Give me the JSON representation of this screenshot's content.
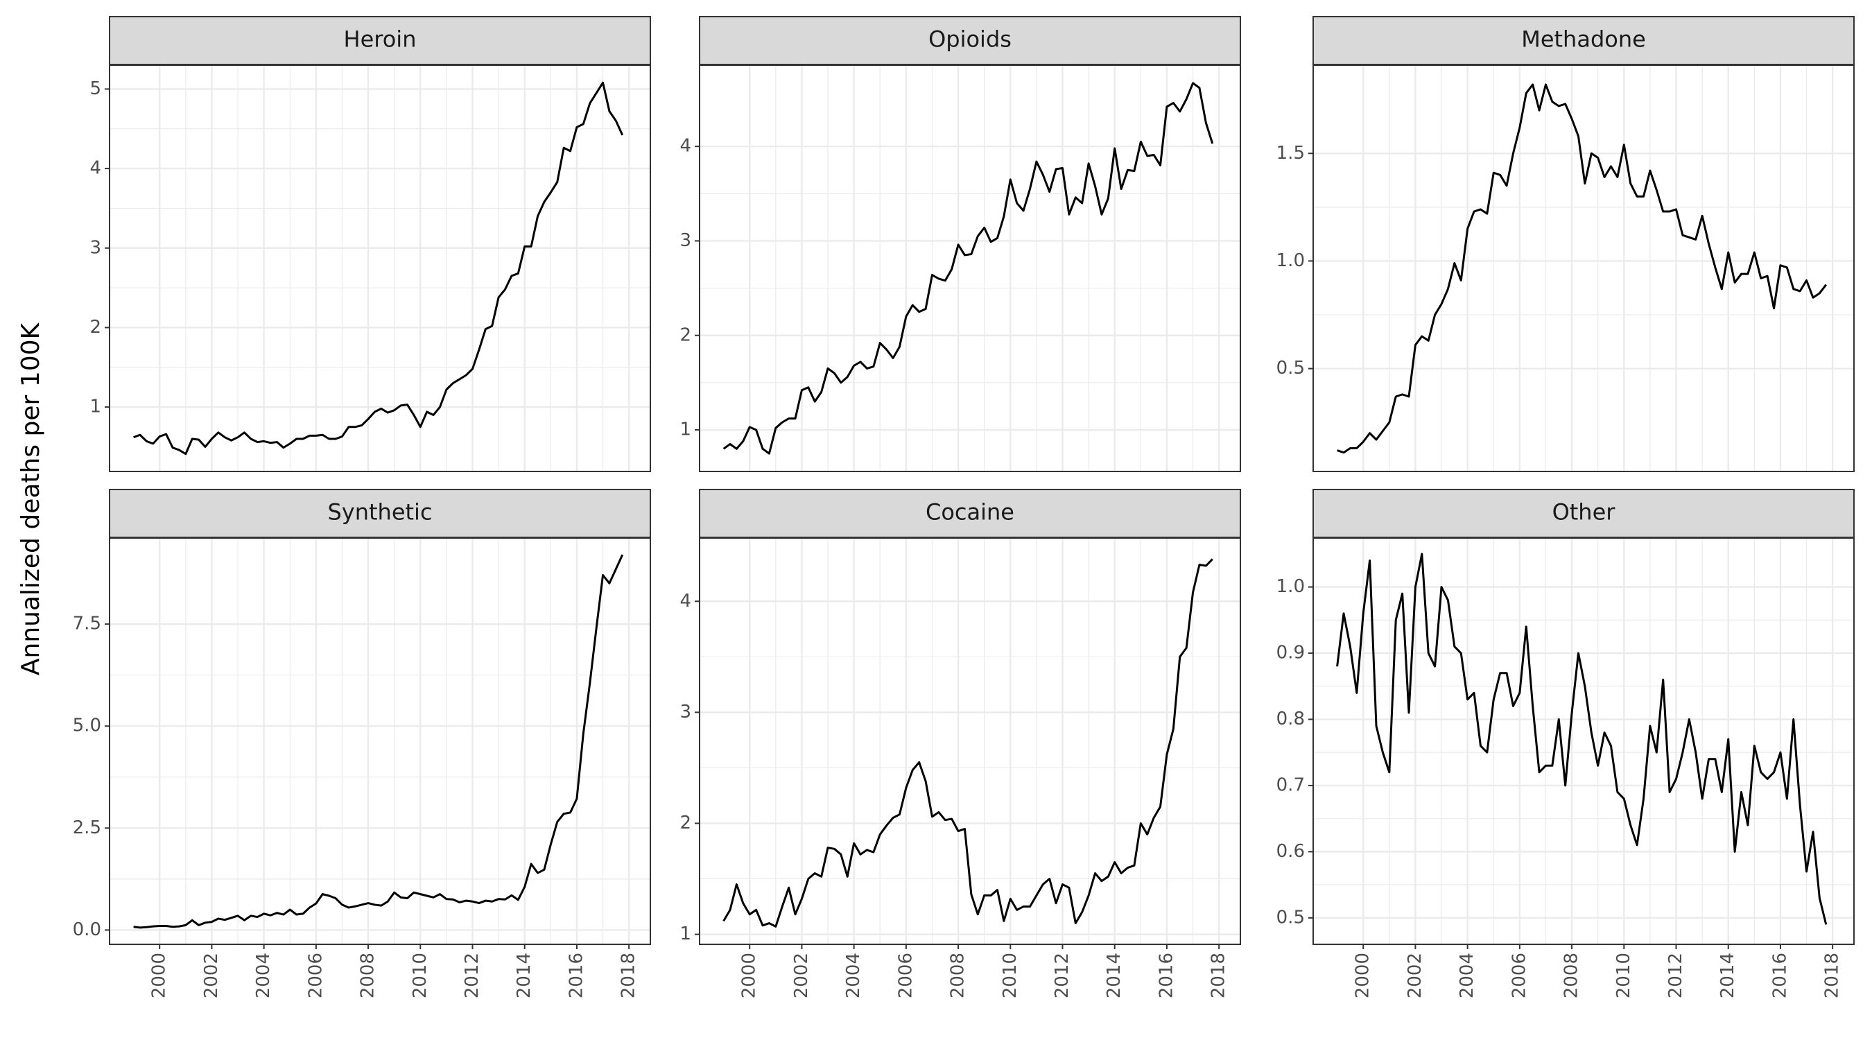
{
  "y_label": "Annualized deaths per 100K",
  "chart_data": [
    {
      "type": "line",
      "title": "Heroin",
      "x": [
        1999,
        1999.25,
        1999.5,
        1999.75,
        2000,
        2000.25,
        2000.5,
        2000.75,
        2001,
        2001.25,
        2001.5,
        2001.75,
        2002,
        2002.25,
        2002.5,
        2002.75,
        2003,
        2003.25,
        2003.5,
        2003.75,
        2004,
        2004.25,
        2004.5,
        2004.75,
        2005,
        2005.25,
        2005.5,
        2005.75,
        2006,
        2006.25,
        2006.5,
        2006.75,
        2007,
        2007.25,
        2007.5,
        2007.75,
        2008,
        2008.25,
        2008.5,
        2008.75,
        2009,
        2009.25,
        2009.5,
        2009.75,
        2010,
        2010.25,
        2010.5,
        2010.75,
        2011,
        2011.25,
        2011.5,
        2011.75,
        2012,
        2012.25,
        2012.5,
        2012.75,
        2013,
        2013.25,
        2013.5,
        2013.75,
        2014,
        2014.25,
        2014.5,
        2014.75,
        2015,
        2015.25,
        2015.5,
        2015.75,
        2016,
        2016.25,
        2016.5,
        2016.75,
        2017,
        2017.25,
        2017.5,
        2017.75
      ],
      "values": [
        0.62,
        0.65,
        0.57,
        0.54,
        0.63,
        0.66,
        0.49,
        0.46,
        0.41,
        0.6,
        0.59,
        0.5,
        0.6,
        0.68,
        0.62,
        0.58,
        0.62,
        0.68,
        0.6,
        0.56,
        0.57,
        0.55,
        0.56,
        0.49,
        0.54,
        0.6,
        0.6,
        0.64,
        0.64,
        0.65,
        0.6,
        0.6,
        0.63,
        0.75,
        0.75,
        0.77,
        0.85,
        0.94,
        0.98,
        0.93,
        0.96,
        1.02,
        1.03,
        0.9,
        0.75,
        0.94,
        0.9,
        1.0,
        1.22,
        1.3,
        1.35,
        1.4,
        1.48,
        1.72,
        1.98,
        2.02,
        2.38,
        2.48,
        2.65,
        2.68,
        3.02,
        3.02,
        3.4,
        3.58,
        3.7,
        3.83,
        4.26,
        4.22,
        4.52,
        4.56,
        4.82,
        4.95,
        5.08,
        4.72,
        4.6,
        4.42
      ],
      "color": "#000000",
      "xlim": [
        1998.08,
        2018.82
      ],
      "ylim": [
        0.19,
        5.3
      ],
      "xticks": [
        2000,
        2002,
        2004,
        2006,
        2008,
        2010,
        2012,
        2014,
        2016,
        2018
      ],
      "yticks": [
        1,
        2,
        3,
        4,
        5
      ],
      "grid": true
    },
    {
      "type": "line",
      "title": "Opioids",
      "x": [
        1999,
        1999.25,
        1999.5,
        1999.75,
        2000,
        2000.25,
        2000.5,
        2000.75,
        2001,
        2001.25,
        2001.5,
        2001.75,
        2002,
        2002.25,
        2002.5,
        2002.75,
        2003,
        2003.25,
        2003.5,
        2003.75,
        2004,
        2004.25,
        2004.5,
        2004.75,
        2005,
        2005.25,
        2005.5,
        2005.75,
        2006,
        2006.25,
        2006.5,
        2006.75,
        2007,
        2007.25,
        2007.5,
        2007.75,
        2008,
        2008.25,
        2008.5,
        2008.75,
        2009,
        2009.25,
        2009.5,
        2009.75,
        2010,
        2010.25,
        2010.5,
        2010.75,
        2011,
        2011.25,
        2011.5,
        2011.75,
        2012,
        2012.25,
        2012.5,
        2012.75,
        2013,
        2013.25,
        2013.5,
        2013.75,
        2014,
        2014.25,
        2014.5,
        2014.75,
        2015,
        2015.25,
        2015.5,
        2015.75,
        2016,
        2016.25,
        2016.5,
        2016.75,
        2017,
        2017.25,
        2017.5,
        2017.75
      ],
      "values": [
        0.8,
        0.85,
        0.8,
        0.88,
        1.03,
        1.0,
        0.8,
        0.75,
        1.02,
        1.08,
        1.12,
        1.12,
        1.42,
        1.45,
        1.3,
        1.4,
        1.65,
        1.6,
        1.5,
        1.56,
        1.68,
        1.72,
        1.65,
        1.67,
        1.92,
        1.85,
        1.76,
        1.88,
        2.2,
        2.32,
        2.25,
        2.28,
        2.64,
        2.6,
        2.58,
        2.7,
        2.96,
        2.85,
        2.86,
        3.05,
        3.14,
        2.99,
        3.03,
        3.26,
        3.65,
        3.4,
        3.32,
        3.55,
        3.84,
        3.7,
        3.52,
        3.76,
        3.77,
        3.28,
        3.46,
        3.4,
        3.82,
        3.58,
        3.28,
        3.45,
        3.98,
        3.55,
        3.75,
        3.74,
        4.05,
        3.9,
        3.91,
        3.8,
        4.42,
        4.46,
        4.37,
        4.5,
        4.67,
        4.62,
        4.25,
        4.03
      ],
      "color": "#000000",
      "xlim": [
        1998.08,
        2018.82
      ],
      "ylim": [
        0.56,
        4.86
      ],
      "xticks": [
        2000,
        2002,
        2004,
        2006,
        2008,
        2010,
        2012,
        2014,
        2016,
        2018
      ],
      "yticks": [
        1,
        2,
        3,
        4
      ],
      "grid": true
    },
    {
      "type": "line",
      "title": "Methadone",
      "x": [
        1999,
        1999.25,
        1999.5,
        1999.75,
        2000,
        2000.25,
        2000.5,
        2000.75,
        2001,
        2001.25,
        2001.5,
        2001.75,
        2002,
        2002.25,
        2002.5,
        2002.75,
        2003,
        2003.25,
        2003.5,
        2003.75,
        2004,
        2004.25,
        2004.5,
        2004.75,
        2005,
        2005.25,
        2005.5,
        2005.75,
        2006,
        2006.25,
        2006.5,
        2006.75,
        2007,
        2007.25,
        2007.5,
        2007.75,
        2008,
        2008.25,
        2008.5,
        2008.75,
        2009,
        2009.25,
        2009.5,
        2009.75,
        2010,
        2010.25,
        2010.5,
        2010.75,
        2011,
        2011.25,
        2011.5,
        2011.75,
        2012,
        2012.25,
        2012.5,
        2012.75,
        2013,
        2013.25,
        2013.5,
        2013.75,
        2014,
        2014.25,
        2014.5,
        2014.75,
        2015,
        2015.25,
        2015.5,
        2015.75,
        2016,
        2016.25,
        2016.5,
        2016.75,
        2017,
        2017.25,
        2017.5,
        2017.75
      ],
      "values": [
        0.12,
        0.11,
        0.13,
        0.13,
        0.16,
        0.2,
        0.17,
        0.21,
        0.25,
        0.37,
        0.38,
        0.37,
        0.61,
        0.65,
        0.63,
        0.75,
        0.8,
        0.87,
        0.99,
        0.91,
        1.15,
        1.23,
        1.24,
        1.22,
        1.41,
        1.4,
        1.35,
        1.5,
        1.62,
        1.78,
        1.82,
        1.7,
        1.82,
        1.74,
        1.72,
        1.73,
        1.66,
        1.58,
        1.36,
        1.5,
        1.48,
        1.39,
        1.44,
        1.39,
        1.54,
        1.36,
        1.3,
        1.3,
        1.42,
        1.33,
        1.23,
        1.23,
        1.24,
        1.12,
        1.11,
        1.1,
        1.21,
        1.08,
        0.97,
        0.87,
        1.04,
        0.9,
        0.94,
        0.94,
        1.04,
        0.92,
        0.93,
        0.78,
        0.98,
        0.97,
        0.87,
        0.86,
        0.91,
        0.83,
        0.85,
        0.89
      ],
      "color": "#000000",
      "xlim": [
        1998.08,
        2018.82
      ],
      "ylim": [
        0.022,
        1.91
      ],
      "xticks": [
        2000,
        2002,
        2004,
        2006,
        2008,
        2010,
        2012,
        2014,
        2016,
        2018
      ],
      "yticks": [
        {
          "value": 0.5,
          "label": "0.5"
        },
        {
          "value": 1,
          "label": "1.0"
        },
        {
          "value": 1.5,
          "label": "1.5"
        }
      ],
      "grid": true
    },
    {
      "type": "line",
      "title": "Synthetic",
      "x": [
        1999,
        1999.25,
        1999.5,
        1999.75,
        2000,
        2000.25,
        2000.5,
        2000.75,
        2001,
        2001.25,
        2001.5,
        2001.75,
        2002,
        2002.25,
        2002.5,
        2002.75,
        2003,
        2003.25,
        2003.5,
        2003.75,
        2004,
        2004.25,
        2004.5,
        2004.75,
        2005,
        2005.25,
        2005.5,
        2005.75,
        2006,
        2006.25,
        2006.5,
        2006.75,
        2007,
        2007.25,
        2007.5,
        2007.75,
        2008,
        2008.25,
        2008.5,
        2008.75,
        2009,
        2009.25,
        2009.5,
        2009.75,
        2010,
        2010.25,
        2010.5,
        2010.75,
        2011,
        2011.25,
        2011.5,
        2011.75,
        2012,
        2012.25,
        2012.5,
        2012.75,
        2013,
        2013.25,
        2013.5,
        2013.75,
        2014,
        2014.25,
        2014.5,
        2014.75,
        2015,
        2015.25,
        2015.5,
        2015.75,
        2016,
        2016.25,
        2016.5,
        2016.75,
        2017,
        2017.25,
        2017.5,
        2017.75
      ],
      "values": [
        0.08,
        0.06,
        0.07,
        0.09,
        0.1,
        0.1,
        0.08,
        0.09,
        0.12,
        0.24,
        0.12,
        0.18,
        0.2,
        0.28,
        0.25,
        0.3,
        0.35,
        0.24,
        0.35,
        0.32,
        0.4,
        0.36,
        0.42,
        0.38,
        0.5,
        0.38,
        0.4,
        0.55,
        0.65,
        0.88,
        0.84,
        0.78,
        0.62,
        0.55,
        0.58,
        0.62,
        0.66,
        0.62,
        0.6,
        0.7,
        0.92,
        0.8,
        0.78,
        0.92,
        0.88,
        0.84,
        0.8,
        0.88,
        0.76,
        0.75,
        0.68,
        0.72,
        0.7,
        0.66,
        0.72,
        0.7,
        0.76,
        0.75,
        0.85,
        0.74,
        1.06,
        1.62,
        1.4,
        1.48,
        2.1,
        2.65,
        2.85,
        2.88,
        3.22,
        4.82,
        6.05,
        7.4,
        8.7,
        8.5,
        8.85,
        9.2
      ],
      "color": "#000000",
      "xlim": [
        1998.08,
        2018.82
      ],
      "ylim": [
        -0.35,
        9.61
      ],
      "xticks": [
        2000,
        2002,
        2004,
        2006,
        2008,
        2010,
        2012,
        2014,
        2016,
        2018
      ],
      "yticks": [
        {
          "value": 0,
          "label": "0.0"
        },
        {
          "value": 2.5,
          "label": "2.5"
        },
        {
          "value": 5,
          "label": "5.0"
        },
        {
          "value": 7.5,
          "label": "7.5"
        }
      ],
      "grid": true
    },
    {
      "type": "line",
      "title": "Cocaine",
      "x": [
        1999,
        1999.25,
        1999.5,
        1999.75,
        2000,
        2000.25,
        2000.5,
        2000.75,
        2001,
        2001.25,
        2001.5,
        2001.75,
        2002,
        2002.25,
        2002.5,
        2002.75,
        2003,
        2003.25,
        2003.5,
        2003.75,
        2004,
        2004.25,
        2004.5,
        2004.75,
        2005,
        2005.25,
        2005.5,
        2005.75,
        2006,
        2006.25,
        2006.5,
        2006.75,
        2007,
        2007.25,
        2007.5,
        2007.75,
        2008,
        2008.25,
        2008.5,
        2008.75,
        2009,
        2009.25,
        2009.5,
        2009.75,
        2010,
        2010.25,
        2010.5,
        2010.75,
        2011,
        2011.25,
        2011.5,
        2011.75,
        2012,
        2012.25,
        2012.5,
        2012.75,
        2013,
        2013.25,
        2013.5,
        2013.75,
        2014,
        2014.25,
        2014.5,
        2014.75,
        2015,
        2015.25,
        2015.5,
        2015.75,
        2016,
        2016.25,
        2016.5,
        2016.75,
        2017,
        2017.25,
        2017.5,
        2017.75
      ],
      "values": [
        1.12,
        1.22,
        1.45,
        1.28,
        1.18,
        1.22,
        1.08,
        1.1,
        1.07,
        1.25,
        1.42,
        1.18,
        1.32,
        1.5,
        1.55,
        1.52,
        1.78,
        1.77,
        1.72,
        1.52,
        1.82,
        1.72,
        1.76,
        1.74,
        1.9,
        1.98,
        2.05,
        2.08,
        2.32,
        2.48,
        2.55,
        2.38,
        2.06,
        2.1,
        2.03,
        2.04,
        1.93,
        1.95,
        1.36,
        1.18,
        1.35,
        1.35,
        1.4,
        1.12,
        1.32,
        1.22,
        1.25,
        1.25,
        1.35,
        1.45,
        1.5,
        1.28,
        1.45,
        1.42,
        1.1,
        1.2,
        1.35,
        1.55,
        1.48,
        1.52,
        1.65,
        1.55,
        1.6,
        1.62,
        2.0,
        1.9,
        2.05,
        2.15,
        2.62,
        2.85,
        3.5,
        3.58,
        4.08,
        4.33,
        4.32,
        4.38
      ],
      "color": "#000000",
      "xlim": [
        1998.08,
        2018.82
      ],
      "ylim": [
        0.91,
        4.57
      ],
      "xticks": [
        2000,
        2002,
        2004,
        2006,
        2008,
        2010,
        2012,
        2014,
        2016,
        2018
      ],
      "yticks": [
        1,
        2,
        3,
        4
      ],
      "grid": true
    },
    {
      "type": "line",
      "title": "Other",
      "x": [
        1999,
        1999.25,
        1999.5,
        1999.75,
        2000,
        2000.25,
        2000.5,
        2000.75,
        2001,
        2001.25,
        2001.5,
        2001.75,
        2002,
        2002.25,
        2002.5,
        2002.75,
        2003,
        2003.25,
        2003.5,
        2003.75,
        2004,
        2004.25,
        2004.5,
        2004.75,
        2005,
        2005.25,
        2005.5,
        2005.75,
        2006,
        2006.25,
        2006.5,
        2006.75,
        2007,
        2007.25,
        2007.5,
        2007.75,
        2008,
        2008.25,
        2008.5,
        2008.75,
        2009,
        2009.25,
        2009.5,
        2009.75,
        2010,
        2010.25,
        2010.5,
        2010.75,
        2011,
        2011.25,
        2011.5,
        2011.75,
        2012,
        2012.25,
        2012.5,
        2012.75,
        2013,
        2013.25,
        2013.5,
        2013.75,
        2014,
        2014.25,
        2014.5,
        2014.75,
        2015,
        2015.25,
        2015.5,
        2015.75,
        2016,
        2016.25,
        2016.5,
        2016.75,
        2017,
        2017.25,
        2017.5,
        2017.75
      ],
      "values": [
        0.88,
        0.96,
        0.91,
        0.84,
        0.96,
        1.04,
        0.79,
        0.75,
        0.72,
        0.95,
        0.99,
        0.81,
        1.0,
        1.05,
        0.9,
        0.88,
        1.0,
        0.98,
        0.91,
        0.9,
        0.83,
        0.84,
        0.76,
        0.75,
        0.83,
        0.87,
        0.87,
        0.82,
        0.84,
        0.94,
        0.82,
        0.72,
        0.73,
        0.73,
        0.8,
        0.7,
        0.81,
        0.9,
        0.85,
        0.78,
        0.73,
        0.78,
        0.76,
        0.69,
        0.68,
        0.64,
        0.61,
        0.68,
        0.79,
        0.75,
        0.86,
        0.69,
        0.71,
        0.75,
        0.8,
        0.75,
        0.68,
        0.74,
        0.74,
        0.69,
        0.77,
        0.6,
        0.69,
        0.64,
        0.76,
        0.72,
        0.71,
        0.72,
        0.75,
        0.68,
        0.8,
        0.67,
        0.57,
        0.63,
        0.53,
        0.49
      ],
      "color": "#000000",
      "xlim": [
        1998.08,
        2018.82
      ],
      "ylim": [
        0.46,
        1.074
      ],
      "xticks": [
        2000,
        2002,
        2004,
        2006,
        2008,
        2010,
        2012,
        2014,
        2016,
        2018
      ],
      "yticks": [
        0.5,
        0.6,
        0.7,
        0.8,
        0.9,
        {
          "value": 1,
          "label": "1.0"
        }
      ],
      "grid": true
    }
  ]
}
